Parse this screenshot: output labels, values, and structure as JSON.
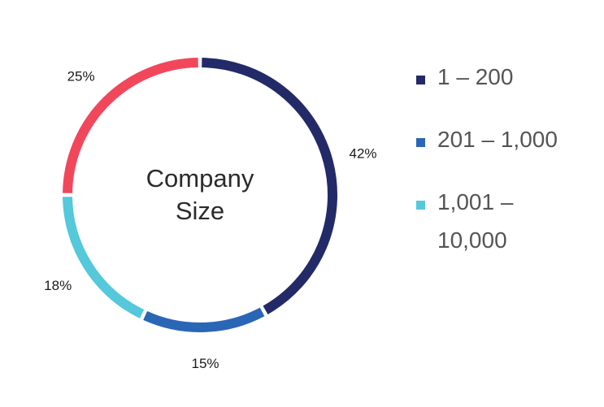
{
  "chart_data": {
    "type": "pie",
    "style": "donut",
    "center_label": [
      "Company",
      "Size"
    ],
    "slices": [
      {
        "label": "1 – 200",
        "value": 42,
        "display": "42%",
        "color": "#232A68"
      },
      {
        "label": "201 – 1,000",
        "value": 15,
        "display": "15%",
        "color": "#2A66B6"
      },
      {
        "label": "1,001 – 10,000",
        "value": 18,
        "display": "18%",
        "color": "#55C8DB"
      },
      {
        "label": "",
        "value": 25,
        "display": "25%",
        "color": "#F2475B"
      }
    ],
    "legend": {
      "placement": "right",
      "entries": [
        {
          "lines": [
            "1 – 200"
          ],
          "color": "#232A68"
        },
        {
          "lines": [
            "201 – 1,000"
          ],
          "color": "#2A66B6"
        },
        {
          "lines": [
            "1,001 –",
            "10,000"
          ],
          "color": "#55C8DB"
        }
      ]
    }
  }
}
